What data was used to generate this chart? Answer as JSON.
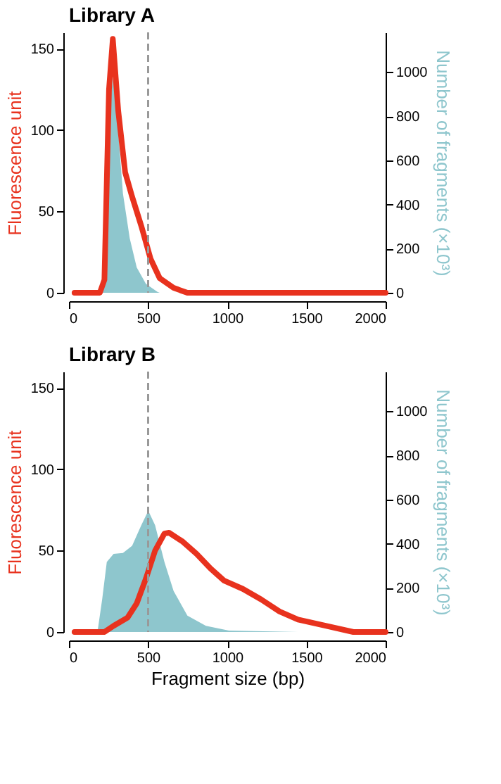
{
  "chart_data": [
    {
      "type": "line",
      "title": "Library A",
      "ylabel": "Fluorescence unit",
      "y2label": "Number of fragments (×10³)",
      "xlim": [
        0,
        2000
      ],
      "xticks": [
        0,
        500,
        1000,
        1500,
        2000
      ],
      "ylim": [
        0,
        160
      ],
      "yticks": [
        0,
        50,
        100,
        150
      ],
      "y2lim": [
        0,
        1180
      ],
      "y2ticks": [
        0,
        200,
        400,
        600,
        800,
        1000
      ],
      "series": [
        {
          "type": "area",
          "axis": "y2",
          "color": "#8ec6cd",
          "x": [
            210,
            239,
            268,
            282,
            311,
            341,
            384,
            428,
            486,
            559,
            573
          ],
          "values": [
            0,
            450,
            916,
            990,
            730,
            450,
            246,
            115,
            41,
            4,
            0
          ]
        },
        {
          "type": "line",
          "color": "#e8321e",
          "x": [
            35,
            195,
            224,
            253,
            277,
            311,
            355,
            399,
            457,
            515,
            573,
            661,
            748,
            2000
          ],
          "values": [
            0,
            0,
            8,
            125,
            156,
            112,
            74,
            59,
            41,
            21,
            9,
            3,
            0,
            0
          ]
        }
      ],
      "ref_lines": [
        {
          "axis": "x",
          "value": 500,
          "color": "#999999",
          "line_style": "dashed"
        }
      ]
    },
    {
      "type": "line",
      "title": "Library B",
      "xlabel": "Fragment size (bp)",
      "ylabel": "Fluorescence unit",
      "y2label": "Number of fragments (×10³)",
      "xlim": [
        0,
        2000
      ],
      "xticks": [
        0,
        500,
        1000,
        1500,
        2000
      ],
      "ylim": [
        0,
        160
      ],
      "yticks": [
        0,
        50,
        100,
        150
      ],
      "y2lim": [
        0,
        1180
      ],
      "y2ticks": [
        0,
        200,
        400,
        600,
        800,
        1000
      ],
      "series": [
        {
          "type": "area",
          "axis": "y2",
          "color": "#8ec6cd",
          "x": [
            180,
            210,
            239,
            282,
            341,
            399,
            457,
            501,
            544,
            603,
            661,
            748,
            865,
            1010,
            1447
          ],
          "values": [
            0,
            149,
            317,
            354,
            358,
            391,
            484,
            549,
            484,
            317,
            186,
            74,
            28,
            6,
            0
          ]
        },
        {
          "type": "line",
          "color": "#e8321e",
          "x": [
            35,
            224,
            282,
            370,
            428,
            486,
            544,
            603,
            632,
            719,
            806,
            894,
            981,
            1098,
            1214,
            1330,
            1447,
            1621,
            1796,
            2000
          ],
          "values": [
            0,
            0,
            3.8,
            8.8,
            17.6,
            32.8,
            50,
            60.5,
            61,
            55.5,
            48,
            39,
            31.5,
            26.5,
            20,
            12.6,
            7.6,
            3.8,
            0,
            0
          ]
        }
      ],
      "ref_lines": [
        {
          "axis": "x",
          "value": 500,
          "color": "#999999",
          "line_style": "dashed"
        }
      ]
    }
  ]
}
